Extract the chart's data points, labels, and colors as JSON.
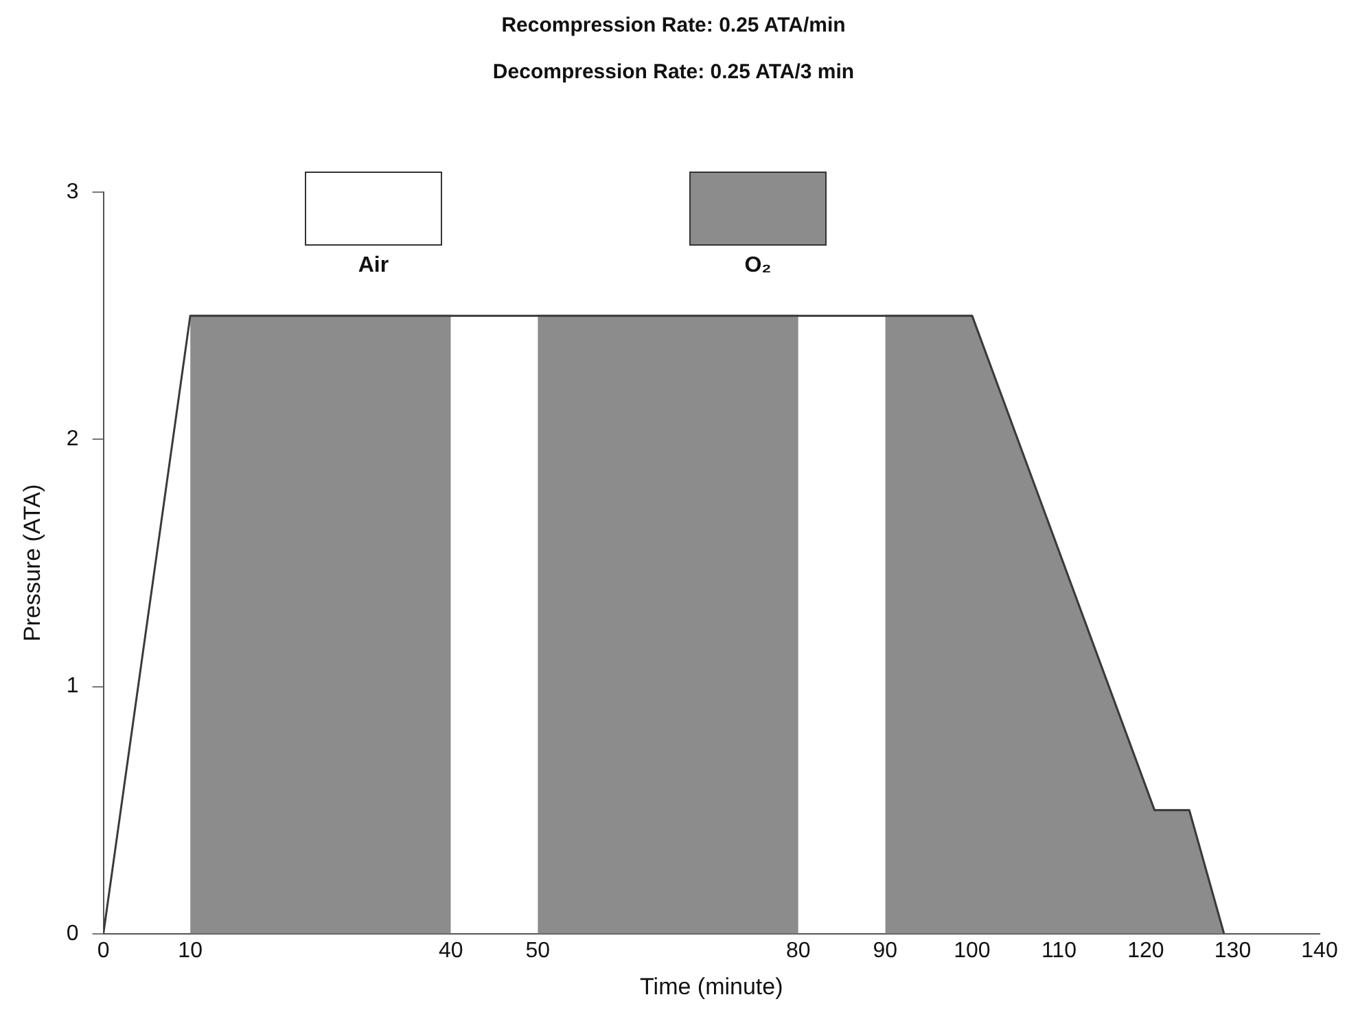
{
  "chart_data": {
    "type": "line",
    "title": "Recompression Rate: 0.25 ATA/min",
    "subtitle": "Decompression Rate: 0.25 ATA/3 min",
    "xlabel": "Time (minute)",
    "ylabel": "Pressure (ATA)",
    "series": [
      {
        "name": "O₂",
        "type": "area",
        "color": "#8c8c8c",
        "x": [
          10,
          40,
          null,
          50,
          80,
          null,
          90,
          100,
          121,
          125,
          129
        ],
        "values": [
          2.5,
          2.5,
          null,
          2.5,
          2.5,
          null,
          2.5,
          2.5,
          0.5,
          0.5,
          0
        ]
      },
      {
        "name": "Air",
        "type": "line",
        "color": "#3a3a3a",
        "x": [
          0,
          10,
          100,
          121,
          125,
          129
        ],
        "values": [
          0,
          2.5,
          2.5,
          0.5,
          0.5,
          0
        ]
      }
    ],
    "xlim": [
      0,
      140
    ],
    "xticks": [
      0,
      10,
      40,
      50,
      80,
      90,
      100,
      110,
      120,
      130,
      140
    ],
    "ylim": [
      0,
      3
    ],
    "yticks": [
      0,
      1,
      2,
      3
    ],
    "grid": false,
    "legend": "top",
    "marker": "none",
    "line_style": "solid"
  }
}
